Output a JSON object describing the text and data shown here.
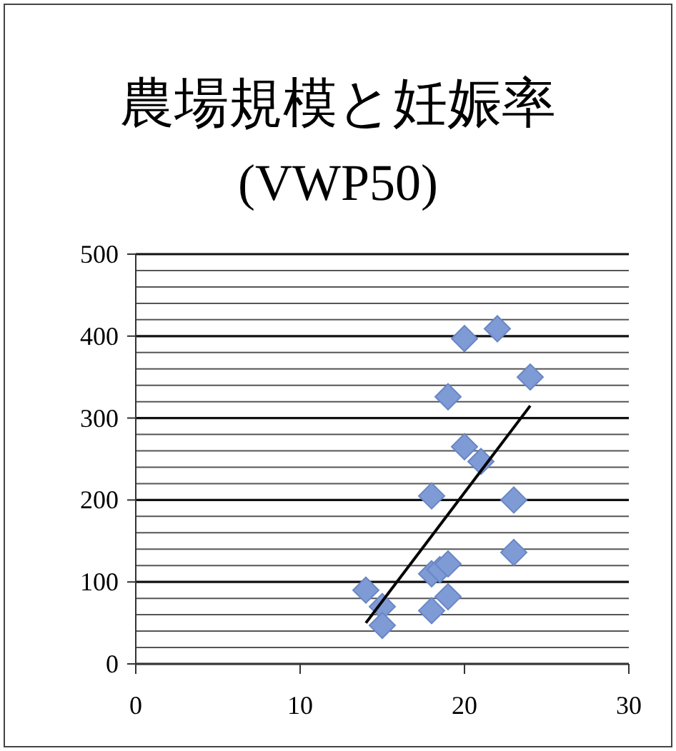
{
  "chart_data": {
    "type": "scatter",
    "title": "農場規模と妊娠率",
    "subtitle": "(VWP50)",
    "marker": "diamond",
    "grid": "y",
    "xlim": [
      0,
      30
    ],
    "xticks": [
      0,
      10,
      20,
      30
    ],
    "ylim": [
      0,
      500
    ],
    "yticks": [
      0,
      {
        "value": 20,
        "label": null
      },
      {
        "value": 40,
        "label": null
      },
      {
        "value": 60,
        "label": null
      },
      {
        "value": 80,
        "label": null
      },
      100,
      {
        "value": 120,
        "label": null
      },
      {
        "value": 140,
        "label": null
      },
      {
        "value": 160,
        "label": null
      },
      {
        "value": 180,
        "label": null
      },
      200,
      {
        "value": 220,
        "label": null
      },
      {
        "value": 240,
        "label": null
      },
      {
        "value": 260,
        "label": null
      },
      {
        "value": 280,
        "label": null
      },
      300,
      {
        "value": 320,
        "label": null
      },
      {
        "value": 340,
        "label": null
      },
      {
        "value": 360,
        "label": null
      },
      {
        "value": 380,
        "label": null
      },
      400,
      {
        "value": 420,
        "label": null
      },
      {
        "value": 440,
        "label": null
      },
      {
        "value": 460,
        "label": null
      },
      {
        "value": 480,
        "label": null
      },
      500
    ],
    "series": [
      {
        "type": "scatter",
        "color": "#7f9bd6",
        "x": [
          14,
          15,
          15,
          18,
          18,
          18,
          18.5,
          19,
          19,
          19,
          20,
          20,
          21,
          22,
          23,
          23,
          24
        ],
        "values": [
          90,
          70,
          47,
          205,
          110,
          65,
          115,
          82,
          122,
          326,
          397,
          265,
          247,
          409,
          200,
          136,
          350
        ]
      },
      {
        "type": "line",
        "color": "#000000",
        "marker": "none",
        "x": [
          14,
          24
        ],
        "values": [
          50,
          315
        ]
      }
    ]
  }
}
